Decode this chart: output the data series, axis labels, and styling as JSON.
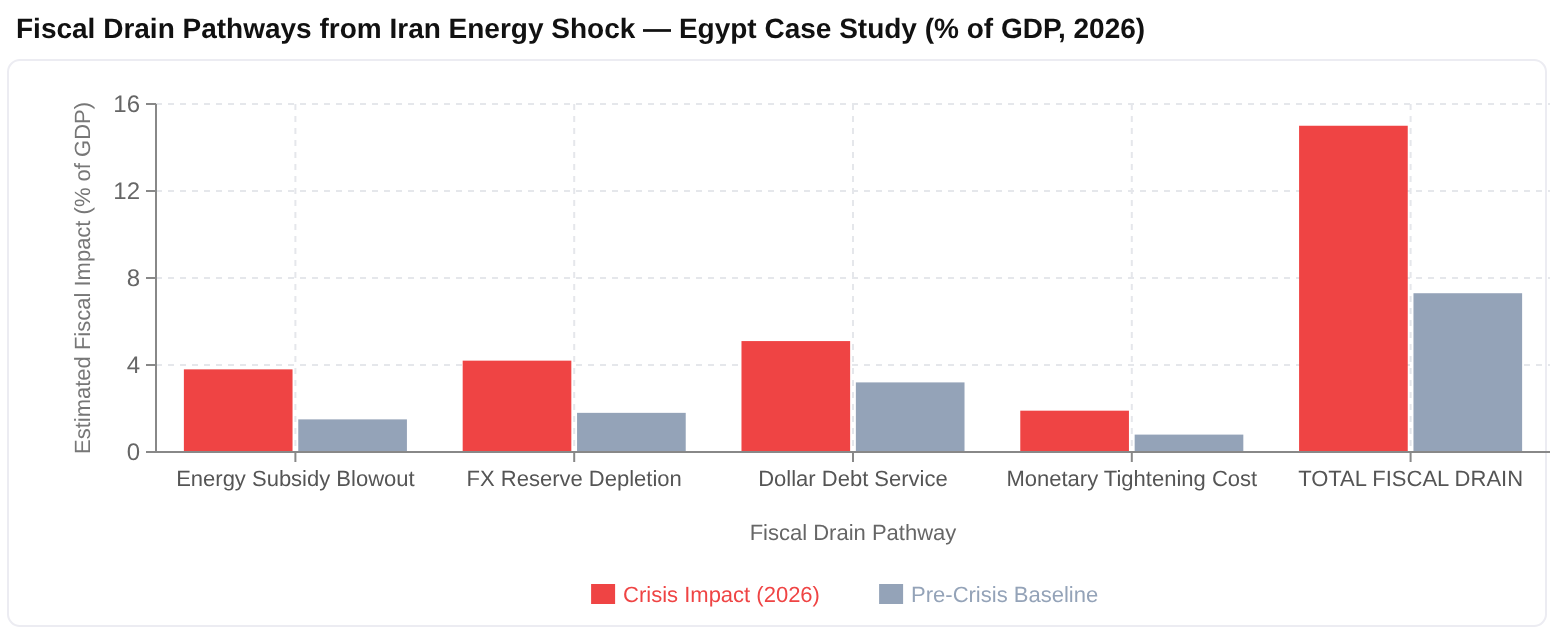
{
  "chart_data": {
    "type": "bar",
    "title": "Fiscal Drain Pathways from Iran Energy Shock — Egypt Case Study (% of GDP, 2026)",
    "xlabel": "Fiscal Drain Pathway",
    "ylabel": "Estimated Fiscal Impact (% of GDP)",
    "categories": [
      "Energy Subsidy Blowout",
      "FX Reserve Depletion",
      "Dollar Debt Service",
      "Monetary Tightening Cost",
      "TOTAL FISCAL DRAIN"
    ],
    "series": [
      {
        "name": "Crisis Impact (2026)",
        "color": "#ef4444",
        "values": [
          3.8,
          4.2,
          5.1,
          1.9,
          15.0
        ]
      },
      {
        "name": "Pre-Crisis Baseline",
        "color": "#94a3b8",
        "values": [
          1.5,
          1.8,
          3.2,
          0.8,
          7.3
        ]
      }
    ],
    "ylim": [
      0,
      16
    ],
    "yticks": [
      0,
      4,
      8,
      12,
      16
    ],
    "grid": true,
    "legend": "bottom"
  }
}
